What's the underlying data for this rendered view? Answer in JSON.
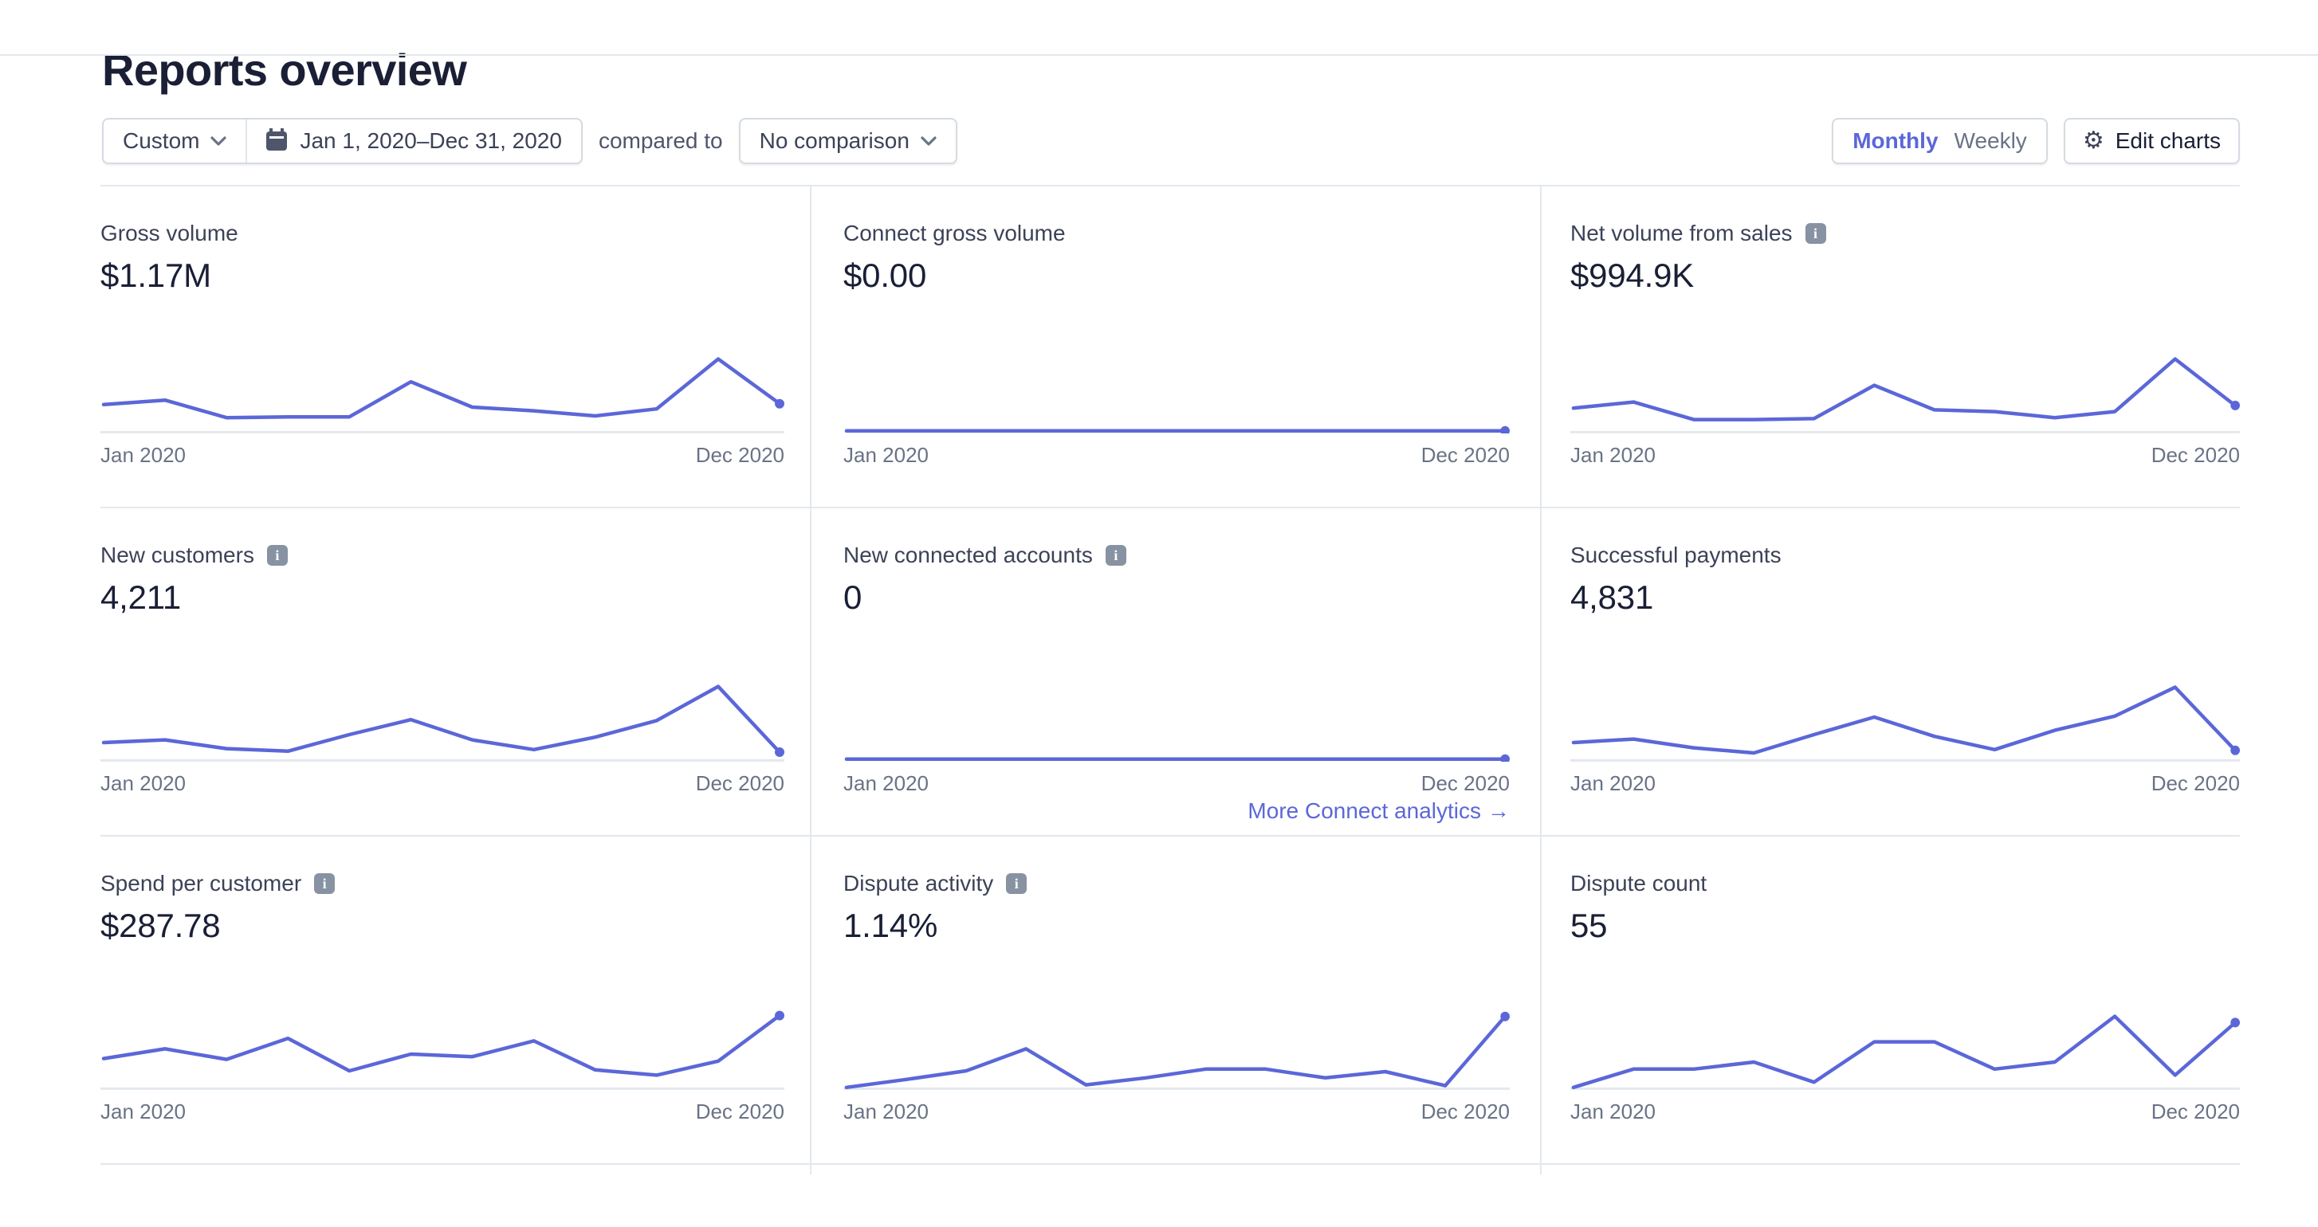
{
  "page": {
    "title": "Reports overview"
  },
  "filters": {
    "range_type": "Custom",
    "date_range": "Jan 1, 2020–Dec 31, 2020",
    "compared_to_label": "compared to",
    "comparison": "No comparison",
    "granularity": {
      "selected": "Monthly",
      "options": [
        "Monthly",
        "Weekly"
      ]
    },
    "edit_charts_label": "Edit charts"
  },
  "colors": {
    "accent": "#5b67d8",
    "baseline": "#e3e8ee",
    "axis_text": "#697386",
    "card_title": "#3c4257",
    "value_text": "#1a1f36",
    "info_badge": "#8792a2"
  },
  "axis": {
    "start_label": "Jan 2020",
    "end_label": "Dec 2020"
  },
  "cards": [
    {
      "title": "Gross volume",
      "value": "$1.17M",
      "info": false,
      "flat": false,
      "link": null
    },
    {
      "title": "Connect gross volume",
      "value": "$0.00",
      "info": false,
      "flat": true,
      "link": null
    },
    {
      "title": "Net volume from sales",
      "value": "$994.9K",
      "info": true,
      "flat": false,
      "link": null
    },
    {
      "title": "New customers",
      "value": "4,211",
      "info": true,
      "flat": false,
      "link": null
    },
    {
      "title": "New connected accounts",
      "value": "0",
      "info": true,
      "flat": true,
      "link": "More Connect analytics"
    },
    {
      "title": "Successful payments",
      "value": "4,831",
      "info": false,
      "flat": false,
      "link": null
    },
    {
      "title": "Spend per customer",
      "value": "$287.78",
      "info": true,
      "flat": false,
      "link": null
    },
    {
      "title": "Dispute activity",
      "value": "1.14%",
      "info": true,
      "flat": false,
      "link": null
    },
    {
      "title": "Dispute count",
      "value": "55",
      "info": false,
      "flat": false,
      "link": null
    }
  ],
  "chart_data": [
    {
      "type": "line",
      "title": "Gross volume",
      "total": "$1.17M",
      "x": [
        "Jan 2020",
        "Feb 2020",
        "Mar 2020",
        "Apr 2020",
        "May 2020",
        "Jun 2020",
        "Jul 2020",
        "Aug 2020",
        "Sep 2020",
        "Oct 2020",
        "Nov 2020",
        "Dec 2020"
      ],
      "units": "relative 0-1 of sparkline height",
      "values": [
        0.3,
        0.35,
        0.15,
        0.16,
        0.16,
        0.56,
        0.27,
        0.23,
        0.17,
        0.25,
        0.82,
        0.31
      ]
    },
    {
      "type": "line",
      "title": "Connect gross volume",
      "total": "$0.00",
      "x": [
        "Jan 2020",
        "Feb 2020",
        "Mar 2020",
        "Apr 2020",
        "May 2020",
        "Jun 2020",
        "Jul 2020",
        "Aug 2020",
        "Sep 2020",
        "Oct 2020",
        "Nov 2020",
        "Dec 2020"
      ],
      "units": "relative 0-1 of sparkline height",
      "values": [
        0,
        0,
        0,
        0,
        0,
        0,
        0,
        0,
        0,
        0,
        0,
        0
      ]
    },
    {
      "type": "line",
      "title": "Net volume from sales",
      "total": "$994.9K",
      "x": [
        "Jan 2020",
        "Feb 2020",
        "Mar 2020",
        "Apr 2020",
        "May 2020",
        "Jun 2020",
        "Jul 2020",
        "Aug 2020",
        "Sep 2020",
        "Oct 2020",
        "Nov 2020",
        "Dec 2020"
      ],
      "units": "relative 0-1 of sparkline height",
      "values": [
        0.26,
        0.33,
        0.13,
        0.13,
        0.14,
        0.52,
        0.24,
        0.22,
        0.15,
        0.22,
        0.82,
        0.29
      ]
    },
    {
      "type": "line",
      "title": "New customers",
      "total": "4,211",
      "x": [
        "Jan 2020",
        "Feb 2020",
        "Mar 2020",
        "Apr 2020",
        "May 2020",
        "Jun 2020",
        "Jul 2020",
        "Aug 2020",
        "Sep 2020",
        "Oct 2020",
        "Nov 2020",
        "Dec 2020"
      ],
      "units": "relative 0-1 of sparkline height",
      "values": [
        0.19,
        0.22,
        0.12,
        0.09,
        0.28,
        0.45,
        0.22,
        0.11,
        0.25,
        0.44,
        0.83,
        0.08
      ]
    },
    {
      "type": "line",
      "title": "New connected accounts",
      "total": "0",
      "x": [
        "Jan 2020",
        "Feb 2020",
        "Mar 2020",
        "Apr 2020",
        "May 2020",
        "Jun 2020",
        "Jul 2020",
        "Aug 2020",
        "Sep 2020",
        "Oct 2020",
        "Nov 2020",
        "Dec 2020"
      ],
      "units": "relative 0-1 of sparkline height",
      "values": [
        0,
        0,
        0,
        0,
        0,
        0,
        0,
        0,
        0,
        0,
        0,
        0
      ]
    },
    {
      "type": "line",
      "title": "Successful payments",
      "total": "4,831",
      "x": [
        "Jan 2020",
        "Feb 2020",
        "Mar 2020",
        "Apr 2020",
        "May 2020",
        "Jun 2020",
        "Jul 2020",
        "Aug 2020",
        "Sep 2020",
        "Oct 2020",
        "Nov 2020",
        "Dec 2020"
      ],
      "units": "relative 0-1 of sparkline height",
      "values": [
        0.19,
        0.23,
        0.13,
        0.07,
        0.28,
        0.48,
        0.26,
        0.11,
        0.33,
        0.49,
        0.82,
        0.1
      ]
    },
    {
      "type": "line",
      "title": "Spend per customer",
      "total": "$287.78",
      "x": [
        "Jan 2020",
        "Feb 2020",
        "Mar 2020",
        "Apr 2020",
        "May 2020",
        "Jun 2020",
        "Jul 2020",
        "Aug 2020",
        "Sep 2020",
        "Oct 2020",
        "Nov 2020",
        "Dec 2020"
      ],
      "units": "relative 0-1 of sparkline height",
      "values": [
        0.33,
        0.44,
        0.32,
        0.56,
        0.19,
        0.38,
        0.35,
        0.53,
        0.2,
        0.14,
        0.3,
        0.82
      ]
    },
    {
      "type": "line",
      "title": "Dispute activity",
      "total": "1.14%",
      "x": [
        "Jan 2020",
        "Feb 2020",
        "Mar 2020",
        "Apr 2020",
        "May 2020",
        "Jun 2020",
        "Jul 2020",
        "Aug 2020",
        "Sep 2020",
        "Oct 2020",
        "Nov 2020",
        "Dec 2020"
      ],
      "units": "relative 0-1 of sparkline height",
      "values": [
        0.0,
        0.09,
        0.19,
        0.44,
        0.03,
        0.11,
        0.21,
        0.21,
        0.11,
        0.18,
        0.02,
        0.81
      ]
    },
    {
      "type": "line",
      "title": "Dispute count",
      "total": "55",
      "x": [
        "Jan 2020",
        "Feb 2020",
        "Mar 2020",
        "Apr 2020",
        "May 2020",
        "Jun 2020",
        "Jul 2020",
        "Aug 2020",
        "Sep 2020",
        "Oct 2020",
        "Nov 2020",
        "Dec 2020"
      ],
      "units": "relative 0-1 of sparkline height",
      "values": [
        0.0,
        0.21,
        0.21,
        0.29,
        0.06,
        0.52,
        0.52,
        0.21,
        0.29,
        0.81,
        0.14,
        0.74
      ]
    }
  ]
}
